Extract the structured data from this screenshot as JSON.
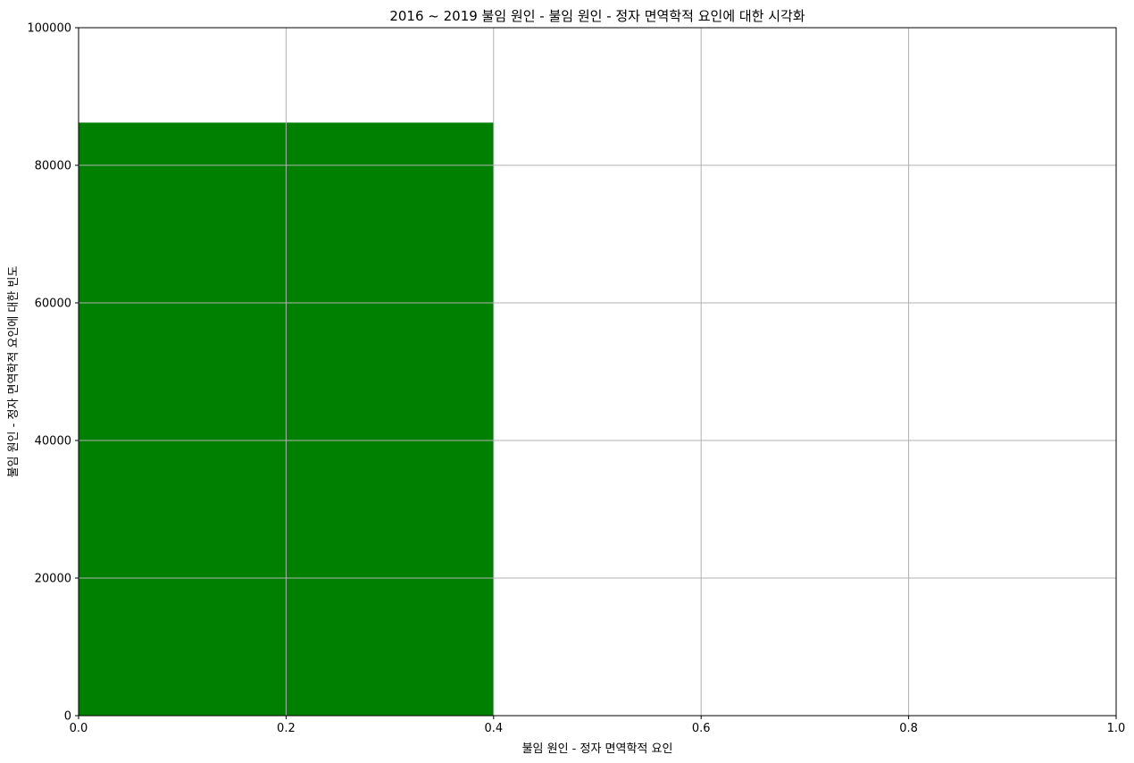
{
  "chart_data": {
    "type": "bar",
    "title": "2016 ~ 2019 불임 원인 - 불임 원인 - 정자 면역학적 요인에 대한 시각화",
    "xlabel": "불임 원인 - 정자 면역학적 요인",
    "ylabel": "불임 원인 - 정자 면역학적 요인에 대한 빈도",
    "bins": [
      {
        "x_start": 0.0,
        "x_end": 0.4,
        "value": 86200
      }
    ],
    "xlim": [
      0.0,
      1.0
    ],
    "ylim": [
      0,
      100000
    ],
    "x_ticks": [
      "0.0",
      "0.2",
      "0.4",
      "0.6",
      "0.8",
      "1.0"
    ],
    "y_ticks": [
      "0",
      "20000",
      "40000",
      "60000",
      "80000",
      "100000"
    ],
    "grid": true,
    "bar_color": "#008000"
  }
}
